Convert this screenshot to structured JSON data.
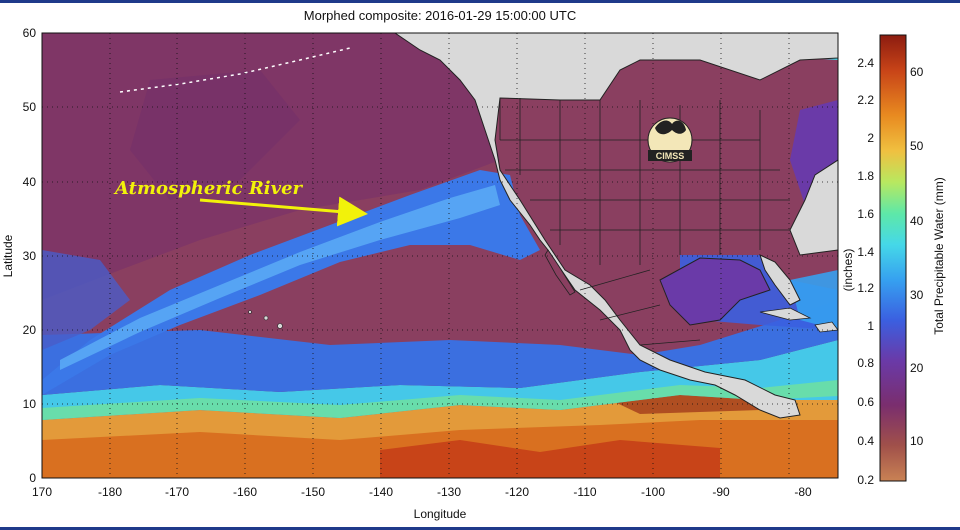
{
  "title": "Morphed composite: 2016-01-29 15:00:00 UTC",
  "annotation": {
    "text": "Atmospheric River",
    "color": "#f2f20a"
  },
  "logo_text": "CIMSS",
  "axes": {
    "xlabel": "Longitude",
    "ylabel": "Latitude",
    "xticks": [
      "170",
      "-180",
      "-170",
      "-160",
      "-150",
      "-140",
      "-130",
      "-120",
      "-110",
      "-100",
      "-90",
      "-80"
    ],
    "yticks": [
      "0",
      "10",
      "20",
      "30",
      "40",
      "50",
      "60"
    ],
    "grid": "dotted"
  },
  "colorbar": {
    "label_mm": "Total Precipitable Water (mm)",
    "label_in": "(inches)",
    "inch_ticks": [
      "0.2",
      "0.4",
      "0.6",
      "0.8",
      "1",
      "1.2",
      "1.4",
      "1.6",
      "1.8",
      "2",
      "2.2",
      "2.4"
    ],
    "mm_ticks": [
      "10",
      "20",
      "30",
      "40",
      "50",
      "60"
    ],
    "colors": [
      "#c98254",
      "#a0504a",
      "#7a2e6e",
      "#6a3aa8",
      "#3b5fe0",
      "#36a0f0",
      "#45d8e8",
      "#5ee8a8",
      "#b8e860",
      "#f0c040",
      "#e88a20",
      "#c84418",
      "#8c1c10"
    ]
  }
}
